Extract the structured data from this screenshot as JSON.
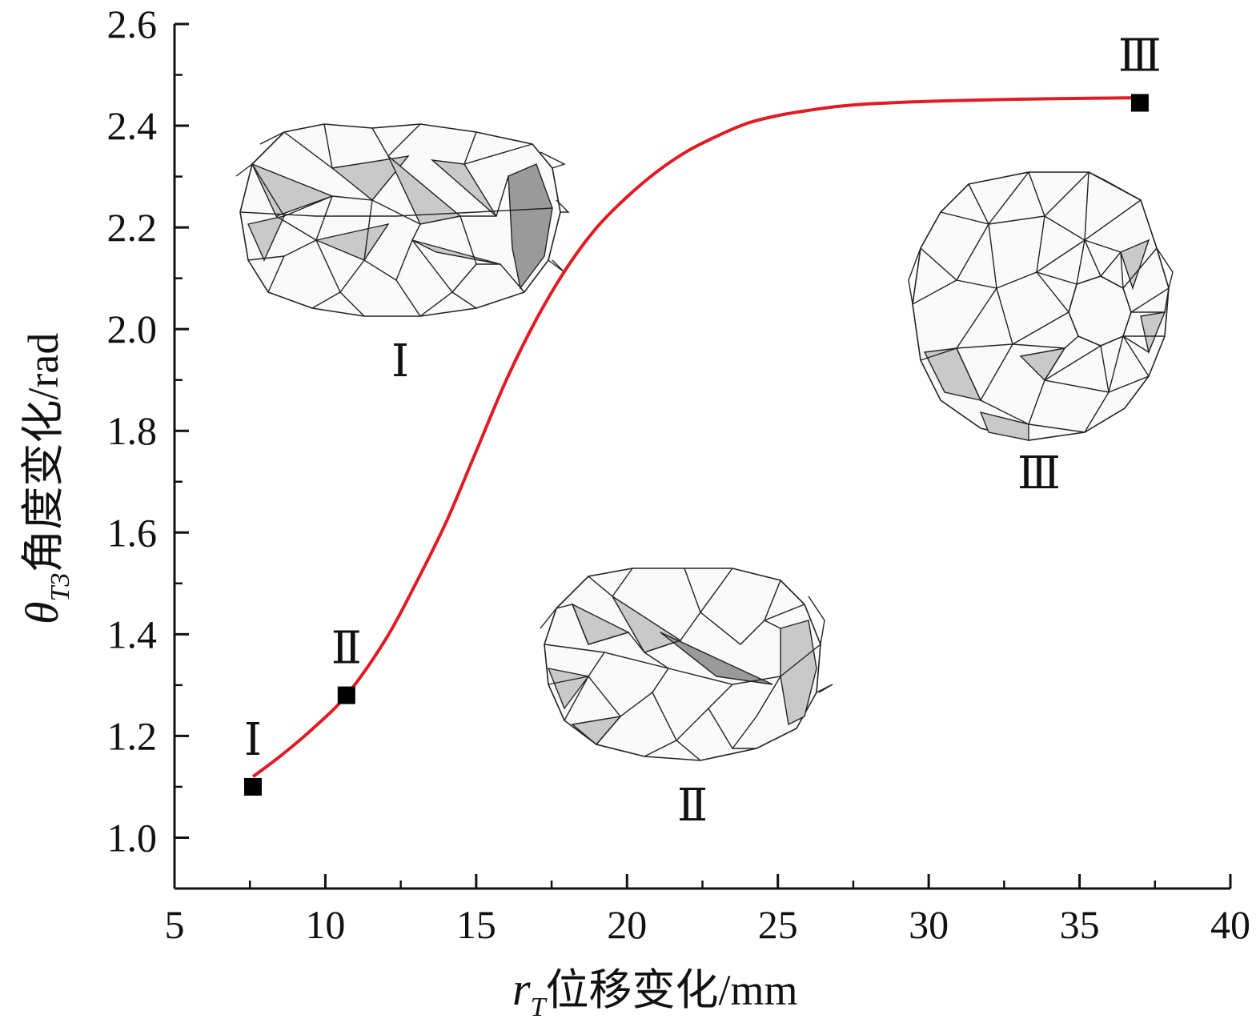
{
  "chart_data": {
    "type": "line",
    "xlabel_var": "r",
    "xlabel_sub": "T",
    "xlabel_text": "位移变化/mm",
    "ylabel_var": "θ",
    "ylabel_sub": "T3",
    "ylabel_text": "角度变化/rad",
    "xlim": [
      5,
      40
    ],
    "ylim": [
      0.9,
      2.6
    ],
    "xticks": [
      5,
      10,
      15,
      20,
      25,
      30,
      35,
      40
    ],
    "xtick_labels": [
      "5",
      "10",
      "15",
      "20",
      "25",
      "30",
      "35",
      "40"
    ],
    "yticks": [
      1.0,
      1.2,
      1.4,
      1.6,
      1.8,
      2.0,
      2.2,
      2.4,
      2.6
    ],
    "ytick_labels": [
      "1.0",
      "1.2",
      "1.4",
      "1.6",
      "1.8",
      "2.0",
      "2.2",
      "2.4",
      "2.6"
    ],
    "series": [
      {
        "color": "#e01b24",
        "x": [
          7.6,
          8.5,
          9.5,
          10.7,
          12.0,
          13.0,
          14.0,
          15.0,
          16.0,
          17.0,
          18.0,
          19.0,
          20.0,
          21.0,
          22.0,
          23.0,
          24.0,
          25.0,
          26.0,
          27.0,
          28.0,
          30.0,
          32.0,
          34.0,
          37.0
        ],
        "y": [
          1.12,
          1.16,
          1.21,
          1.28,
          1.39,
          1.5,
          1.62,
          1.76,
          1.9,
          2.02,
          2.12,
          2.2,
          2.26,
          2.31,
          2.35,
          2.38,
          2.405,
          2.42,
          2.43,
          2.438,
          2.443,
          2.448,
          2.451,
          2.453,
          2.455
        ]
      }
    ],
    "markers": [
      {
        "x": 7.6,
        "y": 1.1,
        "label": "Ⅰ"
      },
      {
        "x": 10.7,
        "y": 1.28,
        "label": "Ⅱ"
      },
      {
        "x": 37.0,
        "y": 2.445,
        "label": "Ⅲ"
      }
    ]
  },
  "insets": [
    {
      "label": "Ⅰ"
    },
    {
      "label": "Ⅱ"
    },
    {
      "label": "Ⅲ"
    }
  ]
}
